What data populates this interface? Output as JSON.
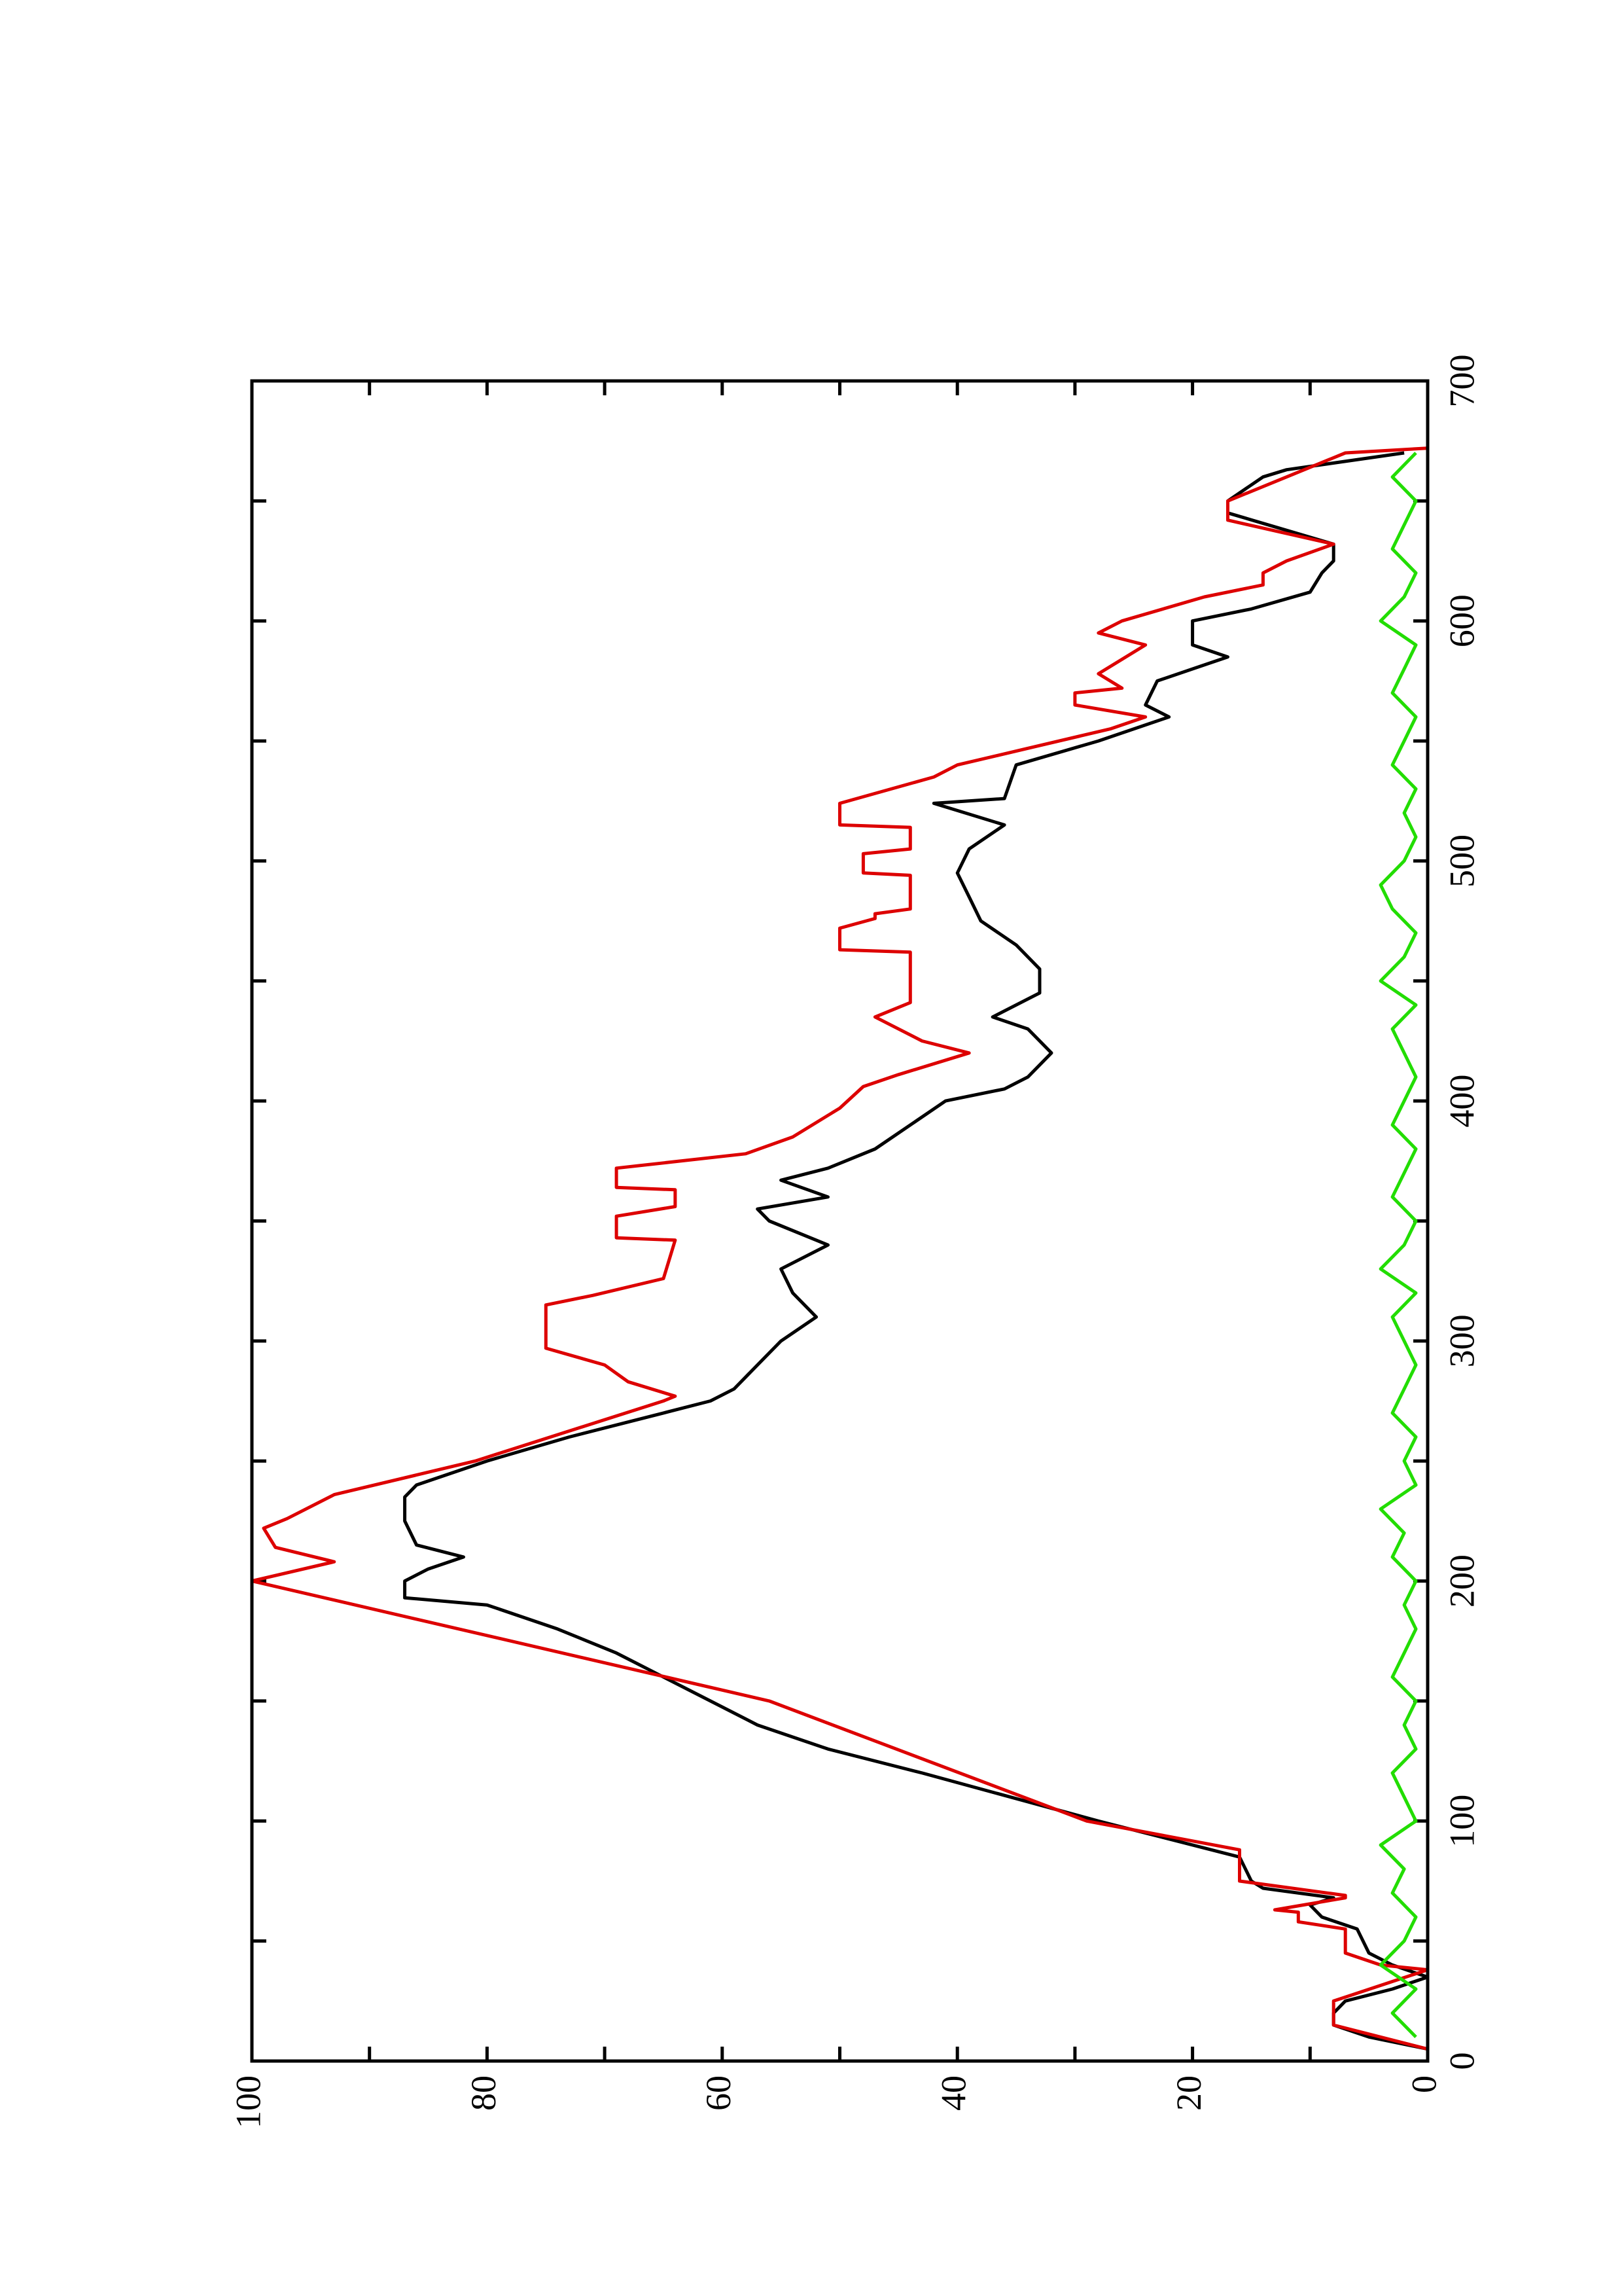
{
  "chart_data": {
    "type": "line",
    "orientation": "rotated",
    "xlim": [
      0,
      700
    ],
    "xticks": [
      0,
      100,
      200,
      300,
      400,
      500,
      600,
      700
    ],
    "xminorticks": [
      50,
      150,
      250,
      350,
      450,
      550,
      650
    ],
    "ylim": [
      0,
      100
    ],
    "yticks": [
      0,
      20,
      40,
      60,
      80,
      100
    ],
    "yminorticks": [
      10,
      30,
      50,
      70,
      90
    ],
    "series": [
      {
        "color": "#000000",
        "x": [
          5,
          10,
          15,
          20,
          25,
          30,
          35,
          40,
          45,
          55,
          60,
          65,
          68,
          72,
          75,
          85,
          100,
          120,
          130,
          140,
          150,
          160,
          170,
          180,
          190,
          193,
          200,
          205,
          210,
          215,
          225,
          235,
          240,
          250,
          260,
          270,
          275,
          280,
          290,
          300,
          310,
          320,
          330,
          340,
          350,
          355,
          360,
          367,
          372,
          380,
          390,
          400,
          405,
          410,
          420,
          430,
          435,
          445,
          455,
          465,
          475,
          485,
          495,
          505,
          515,
          524,
          526,
          540,
          550,
          560,
          565,
          575,
          585,
          590,
          600,
          605,
          612,
          620,
          625,
          632,
          645,
          650,
          660,
          663,
          670
        ],
        "values": [
          0,
          5,
          8,
          8,
          7,
          3,
          0,
          3,
          5,
          6,
          9,
          10,
          8,
          14,
          15,
          16,
          28,
          43,
          51,
          57,
          61,
          65,
          69,
          74,
          80,
          87,
          87,
          85,
          82,
          86,
          87,
          87,
          86,
          80,
          73,
          65,
          61,
          59,
          57,
          55,
          52,
          54,
          55,
          51,
          56,
          57,
          51,
          55,
          51,
          47,
          44,
          41,
          36,
          34,
          32,
          34,
          37,
          33,
          33,
          35,
          38,
          39,
          40,
          39,
          36,
          42,
          36,
          35,
          28,
          22,
          24,
          23,
          17,
          20,
          20,
          15,
          10,
          9,
          8,
          8,
          17,
          17,
          14,
          12,
          2
        ]
      },
      {
        "color": "#dd0000",
        "x": [
          5,
          15,
          25,
          38,
          40,
          45,
          55,
          58,
          62,
          63,
          68,
          69,
          75,
          88,
          100,
          150,
          200,
          208,
          214,
          222,
          226,
          236,
          250,
          275,
          277,
          283,
          290,
          297,
          315,
          319,
          326,
          342,
          343,
          352,
          356,
          363,
          364,
          372,
          378,
          385,
          397,
          406,
          411,
          420,
          425,
          435,
          441,
          462,
          463,
          472,
          476,
          478,
          480,
          494,
          495,
          503,
          505,
          514,
          515,
          524,
          535,
          540,
          555,
          560,
          565,
          570,
          572,
          578,
          590,
          595,
          600,
          610,
          615,
          620,
          625,
          632,
          642,
          650,
          660,
          670,
          672
        ],
        "values": [
          0,
          8,
          8,
          0,
          4,
          7,
          7,
          11,
          11,
          13,
          7,
          7,
          16,
          16,
          29,
          56,
          100,
          93,
          98,
          99,
          97,
          93,
          81,
          65,
          64,
          68,
          70,
          75,
          75,
          71,
          65,
          64,
          69,
          69,
          64,
          64,
          69,
          69,
          58,
          54,
          50,
          48,
          45,
          39,
          43,
          47,
          44,
          44,
          50,
          50,
          47,
          47,
          44,
          44,
          48,
          48,
          44,
          44,
          50,
          50,
          42,
          40,
          27,
          24,
          30,
          30,
          26,
          28,
          24,
          28,
          26,
          19,
          14,
          14,
          12,
          8,
          17,
          17,
          12,
          7,
          0
        ]
      },
      {
        "color": "#22dd00",
        "x": [
          10,
          20,
          30,
          40,
          50,
          60,
          70,
          80,
          90,
          100,
          110,
          120,
          130,
          140,
          150,
          160,
          170,
          180,
          190,
          200,
          210,
          220,
          230,
          240,
          250,
          260,
          270,
          280,
          290,
          300,
          310,
          320,
          330,
          340,
          350,
          360,
          370,
          380,
          390,
          400,
          410,
          420,
          430,
          440,
          450,
          460,
          470,
          480,
          490,
          500,
          510,
          520,
          530,
          540,
          550,
          560,
          570,
          580,
          590,
          600,
          610,
          620,
          630,
          640,
          650,
          660,
          670
        ],
        "values": [
          1,
          3,
          1,
          4,
          2,
          1,
          3,
          2,
          4,
          1,
          2,
          3,
          1,
          2,
          1,
          3,
          2,
          1,
          2,
          1,
          3,
          2,
          4,
          1,
          2,
          1,
          3,
          2,
          1,
          2,
          3,
          1,
          4,
          2,
          1,
          3,
          2,
          1,
          3,
          2,
          1,
          2,
          3,
          1,
          4,
          2,
          1,
          3,
          4,
          2,
          1,
          2,
          1,
          3,
          2,
          1,
          3,
          2,
          1,
          4,
          2,
          1,
          3,
          2,
          1,
          3,
          1
        ]
      }
    ]
  }
}
